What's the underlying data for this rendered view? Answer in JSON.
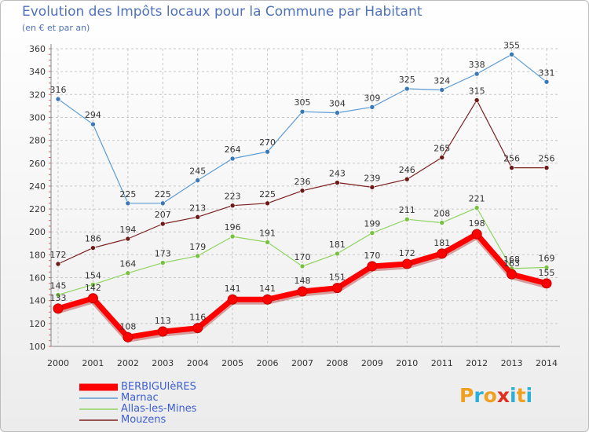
{
  "header": {
    "title": "Evolution des Impôts locaux pour la Commune par Habitant",
    "subtitle": "(en € et par an)"
  },
  "logo": {
    "letters": [
      "P",
      "r",
      "o",
      "x",
      "i",
      "t",
      "i"
    ],
    "colors": [
      "#f0a020",
      "#2ab0d8",
      "#f0a020",
      "#e03020",
      "#2ab0d8",
      "#f0a020",
      "#2ab0d8"
    ]
  },
  "chart_data": {
    "type": "line",
    "title": "Evolution des Impôts locaux pour la Commune par Habitant",
    "subtitle": "(en € et par an)",
    "xlabel": "",
    "ylabel": "",
    "x": [
      "2000",
      "2001",
      "2002",
      "2003",
      "2004",
      "2005",
      "2006",
      "2007",
      "2008",
      "2009",
      "2010",
      "2011",
      "2012",
      "2013",
      "2014"
    ],
    "ylim": [
      100,
      360
    ],
    "yticks": [
      100,
      120,
      140,
      160,
      180,
      200,
      220,
      240,
      260,
      280,
      300,
      320,
      340,
      360
    ],
    "grid": true,
    "legend_position": "bottom-left",
    "series": [
      {
        "name": "Marnac",
        "color": "#5b9bd5",
        "dot": "#3a78b8",
        "values": [
          316,
          294,
          225,
          225,
          245,
          264,
          270,
          305,
          304,
          309,
          325,
          324,
          338,
          355,
          331
        ]
      },
      {
        "name": "Mouzens",
        "color": "#7b1f1f",
        "dot": "#6a1818",
        "values": [
          172,
          186,
          194,
          207,
          213,
          223,
          225,
          236,
          243,
          239,
          246,
          265,
          315,
          256,
          256
        ]
      },
      {
        "name": "Allas-les-Mines",
        "color": "#8fd460",
        "dot": "#78c040",
        "values": [
          145,
          154,
          164,
          173,
          179,
          196,
          191,
          170,
          181,
          199,
          211,
          208,
          221,
          168,
          169
        ]
      },
      {
        "name": "BERBIGUIèRES",
        "color": "#ff0000",
        "dot": "#ff0000",
        "values": [
          133,
          142,
          108,
          113,
          116,
          141,
          141,
          148,
          151,
          170,
          172,
          181,
          198,
          163,
          155
        ]
      }
    ],
    "legend_order": [
      "BERBIGUIèRES",
      "Marnac",
      "Allas-les-Mines",
      "Mouzens"
    ]
  }
}
